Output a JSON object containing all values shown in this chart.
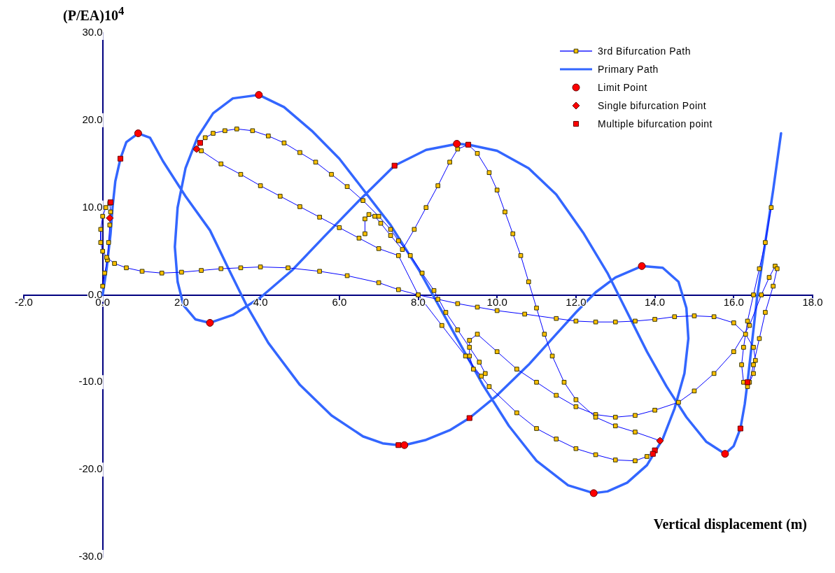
{
  "chart_data": {
    "type": "line",
    "xlabel": "Vertical displacement (m)",
    "ylabel": "(P/EA)10$^{4}$",
    "xlim": [
      -2,
      18
    ],
    "xticks": [
      {
        "value": -2,
        "label": "-2.0"
      },
      {
        "value": 0,
        "label": "0.0"
      },
      {
        "value": 2,
        "label": "2.0"
      },
      {
        "value": 4,
        "label": "4.0"
      },
      {
        "value": 6,
        "label": "6.0"
      },
      {
        "value": 8,
        "label": "8.0"
      },
      {
        "value": 10,
        "label": "10.0"
      },
      {
        "value": 12,
        "label": "12.0"
      },
      {
        "value": 14,
        "label": "14.0"
      },
      {
        "value": 16,
        "label": "16.0"
      },
      {
        "value": 18,
        "label": "18.0"
      }
    ],
    "ylim": [
      -30,
      30
    ],
    "yticks": [
      {
        "value": -30,
        "label": "-30.0"
      },
      {
        "value": -20,
        "label": "-20.0"
      },
      {
        "value": -10,
        "label": "-10.0"
      },
      {
        "value": 0,
        "label": "0.0"
      },
      {
        "value": 10,
        "label": "10.0"
      },
      {
        "value": 20,
        "label": "20.0"
      },
      {
        "value": 30,
        "label": "30.0"
      }
    ],
    "grid": false,
    "legend": "top right",
    "series": [
      {
        "name": "3rd Bifurcation Path",
        "type": "line",
        "marker": "square",
        "color": "#ffc000",
        "x": [
          0.0,
          0.05,
          0.12,
          0.15,
          0.18,
          0.2,
          0.18,
          0.08,
          0.0,
          -0.05,
          -0.05,
          0.0,
          0.1,
          0.3,
          0.6,
          1.0,
          1.5,
          2.0,
          2.5,
          3.0,
          3.5,
          4.0,
          4.7,
          5.5,
          6.2,
          7.0,
          7.5,
          8.0,
          8.5,
          9.0,
          9.5,
          10.0,
          10.7,
          11.5,
          12.0,
          12.5,
          13.0,
          13.5,
          14.0,
          14.5,
          15.0,
          15.5,
          16.0,
          16.3,
          16.5,
          16.55,
          16.5,
          16.35,
          16.25,
          16.2,
          16.25,
          16.35,
          16.5,
          16.65,
          16.8,
          16.95,
          null,
          2.38,
          2.47,
          2.6,
          2.8,
          3.1,
          3.4,
          3.8,
          4.2,
          4.6,
          5.0,
          5.4,
          5.8,
          6.2,
          6.6,
          7.0,
          7.3,
          7.5,
          7.8,
          8.1,
          8.4,
          8.7,
          9.0,
          9.3,
          9.55,
          9.7,
          9.6,
          9.4,
          9.3,
          9.3,
          9.5,
          10.0,
          10.5,
          11.0,
          11.5,
          12.0,
          12.5,
          13.0,
          13.5,
          14.0,
          14.6,
          15.0,
          15.5,
          16.0,
          16.4,
          16.7,
          16.9,
          17.05,
          17.1,
          17.0,
          16.8,
          16.65,
          16.5,
          16.4,
          null,
          2.5,
          3.0,
          3.5,
          4.0,
          4.5,
          5.0,
          5.5,
          6.0,
          6.5,
          7.0,
          7.5,
          8.0,
          8.6,
          9.2,
          9.8,
          10.5,
          11.0,
          11.5,
          12.0,
          12.5,
          13.0,
          13.5,
          13.8,
          14.0,
          null,
          6.65,
          6.65,
          6.75,
          6.9,
          7.05,
          7.3,
          7.6,
          7.9,
          8.2,
          8.5,
          8.8,
          9.0,
          9.27,
          9.5,
          9.8,
          10.0,
          10.2,
          10.4,
          10.6,
          10.8,
          11.0,
          11.2,
          11.4,
          11.7,
          12.0,
          12.5,
          13.0,
          13.5,
          14.13
        ],
        "values": [
          1.0,
          2.5,
          4.0,
          6.0,
          8.0,
          9.5,
          10.5,
          10.0,
          9.0,
          7.5,
          6.0,
          5.0,
          4.3,
          3.6,
          3.1,
          2.7,
          2.5,
          2.6,
          2.8,
          3.0,
          3.1,
          3.2,
          3.1,
          2.7,
          2.2,
          1.4,
          0.6,
          0.0,
          -0.5,
          -1.0,
          -1.4,
          -1.8,
          -2.2,
          -2.7,
          -3.0,
          -3.1,
          -3.1,
          -3.0,
          -2.8,
          -2.5,
          -2.4,
          -2.5,
          -3.2,
          -4.5,
          -6.0,
          -7.5,
          -9.0,
          -10.5,
          -10.0,
          -8.0,
          -6.0,
          -3.0,
          0.0,
          3.0,
          6.0,
          10.0,
          null,
          16.7,
          17.4,
          18.0,
          18.5,
          18.8,
          19.0,
          18.8,
          18.2,
          17.4,
          16.3,
          15.2,
          13.8,
          12.4,
          10.8,
          9.0,
          7.5,
          6.2,
          4.5,
          2.5,
          0.5,
          -2.0,
          -4.0,
          -6.0,
          -7.7,
          -9.0,
          -9.3,
          -8.5,
          -7.0,
          -5.2,
          -4.5,
          -6.5,
          -8.5,
          -10.0,
          -11.5,
          -12.8,
          -13.7,
          -14.0,
          -13.8,
          -13.2,
          -12.3,
          -11.0,
          -9.0,
          -6.5,
          -3.5,
          0.0,
          2.0,
          3.3,
          3.0,
          1.0,
          -2.0,
          -5.0,
          -8.0,
          -10.0,
          null,
          16.5,
          15.0,
          13.8,
          12.5,
          11.3,
          10.1,
          8.9,
          7.7,
          6.5,
          5.3,
          4.5,
          0.0,
          -3.5,
          -7.0,
          -10.5,
          -13.5,
          -15.3,
          -16.5,
          -17.6,
          -18.3,
          -18.9,
          -19.0,
          -18.5,
          -17.8,
          null,
          7.0,
          8.7,
          9.2,
          9.0,
          8.2,
          6.8,
          5.2,
          7.5,
          10.0,
          12.5,
          15.2,
          16.7,
          17.2,
          16.2,
          14.0,
          12.0,
          9.5,
          7.0,
          4.5,
          1.5,
          -1.5,
          -4.5,
          -7.0,
          -10.0,
          -12.0,
          -14.0,
          -15.0,
          -15.7,
          -16.7
        ]
      },
      {
        "name": "Primary Path",
        "type": "line",
        "marker": "none",
        "color": "#3366ff",
        "x": [
          0.0,
          0.1,
          0.2,
          0.25,
          0.32,
          0.45,
          0.6,
          0.9,
          1.2,
          1.53,
          2.1,
          2.72,
          3.2,
          3.66,
          4.2,
          5.0,
          5.8,
          6.6,
          7.1,
          7.5,
          7.65,
          8.2,
          8.8,
          9.3,
          10.0,
          10.8,
          11.5,
          12.0,
          12.5,
          13.0,
          13.67,
          14.2,
          14.6,
          14.8,
          14.85,
          14.75,
          14.5,
          14.2,
          13.8,
          13.3,
          12.8,
          12.45,
          11.8,
          11.0,
          10.3,
          9.64,
          8.8,
          8.04,
          7.3,
          6.6,
          6.0,
          5.3,
          4.6,
          3.96,
          3.3,
          2.8,
          2.4,
          2.1,
          1.9,
          1.83,
          1.9,
          2.05,
          2.35,
          2.72,
          3.3,
          4.0,
          4.8,
          5.6,
          6.5,
          7.4,
          8.2,
          9.0,
          9.27,
          10.0,
          10.8,
          11.5,
          12.2,
          12.8,
          13.3,
          13.8,
          14.3,
          14.8,
          15.3,
          15.78,
          16.0,
          16.17,
          16.28,
          16.35,
          16.45,
          16.6,
          16.8,
          17.0,
          17.2
        ],
        "values": [
          0.0,
          3.0,
          7.0,
          10.0,
          13.0,
          15.6,
          17.5,
          18.5,
          18.0,
          15.3,
          11.3,
          7.4,
          2.9,
          -1.3,
          -5.5,
          -10.3,
          -13.8,
          -16.2,
          -17.0,
          -17.2,
          -17.2,
          -16.6,
          -15.5,
          -14.1,
          -11.5,
          -8.0,
          -4.5,
          -2.0,
          0.3,
          2.0,
          3.3,
          3.1,
          1.5,
          -1.5,
          -5.0,
          -9.0,
          -13.0,
          -16.5,
          -19.5,
          -21.5,
          -22.5,
          -22.7,
          -21.8,
          -19.0,
          -15.0,
          -10.3,
          -3.5,
          2.7,
          8.0,
          12.1,
          15.6,
          18.8,
          21.5,
          22.9,
          22.5,
          20.8,
          18.0,
          14.5,
          10.0,
          5.5,
          1.5,
          -1.2,
          -2.8,
          -3.2,
          -2.3,
          -0.3,
          2.8,
          6.6,
          10.8,
          14.8,
          16.6,
          17.3,
          17.2,
          16.5,
          14.5,
          11.5,
          7.0,
          2.5,
          -2.0,
          -6.5,
          -10.5,
          -14.0,
          -16.8,
          -18.2,
          -17.3,
          -15.3,
          -12.5,
          -10.0,
          -6.0,
          0.0,
          6.0,
          12.0,
          18.5
        ]
      },
      {
        "name": "Limit Point",
        "type": "scatter",
        "marker": "circle",
        "color": "#ff0000",
        "x": [
          0.9,
          3.96,
          2.72,
          7.65,
          8.98,
          13.67,
          12.45,
          15.78
        ],
        "values": [
          18.5,
          22.9,
          -3.2,
          -17.2,
          17.3,
          3.3,
          -22.7,
          -18.2
        ]
      },
      {
        "name": "Single bifurcation Point",
        "type": "scatter",
        "marker": "diamond",
        "color": "#ff0000",
        "x": [
          0.18,
          2.38,
          14.13
        ],
        "values": [
          8.8,
          16.7,
          -16.7
        ]
      },
      {
        "name": "Multiple bifurcation point",
        "type": "scatter",
        "marker": "square",
        "color": "#ff0000",
        "x": [
          0.2,
          0.45,
          2.47,
          7.4,
          9.27,
          9.3,
          7.5,
          14.0,
          13.95,
          16.35,
          16.17
        ],
        "values": [
          10.6,
          15.6,
          17.4,
          14.8,
          17.2,
          -14.1,
          -17.2,
          -17.8,
          -18.2,
          -10.0,
          -15.3
        ]
      }
    ]
  }
}
